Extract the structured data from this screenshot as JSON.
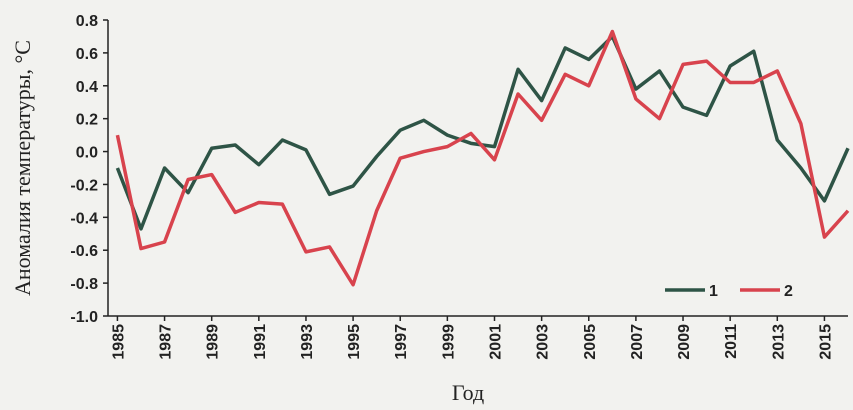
{
  "chart_data": {
    "type": "line",
    "x": [
      1985,
      1986,
      1987,
      1988,
      1989,
      1990,
      1991,
      1992,
      1993,
      1994,
      1995,
      1996,
      1997,
      1998,
      1999,
      2000,
      2001,
      2002,
      2003,
      2004,
      2005,
      2006,
      2007,
      2008,
      2009,
      2010,
      2011,
      2012,
      2013,
      2014,
      2015,
      2016
    ],
    "series": [
      {
        "name": "1",
        "color": "#2e5446",
        "values": [
          -0.1,
          -0.47,
          -0.1,
          -0.25,
          0.02,
          0.04,
          -0.08,
          0.07,
          0.01,
          -0.26,
          -0.21,
          -0.03,
          0.13,
          0.19,
          0.1,
          0.05,
          0.03,
          0.5,
          0.31,
          0.63,
          0.56,
          0.7,
          0.38,
          0.49,
          0.27,
          0.22,
          0.52,
          0.61,
          0.07,
          -0.1,
          -0.3,
          0.02
        ]
      },
      {
        "name": "2",
        "color": "#d8434d",
        "values": [
          0.1,
          -0.59,
          -0.55,
          -0.17,
          -0.14,
          -0.37,
          -0.31,
          -0.32,
          -0.61,
          -0.58,
          -0.81,
          -0.36,
          -0.04,
          0.0,
          0.03,
          0.11,
          -0.05,
          0.35,
          0.19,
          0.47,
          0.4,
          0.73,
          0.32,
          0.2,
          0.53,
          0.55,
          0.42,
          0.42,
          0.49,
          0.17,
          -0.52,
          -0.36
        ]
      }
    ],
    "xlim": [
      1984.6,
      2016
    ],
    "xticks": [
      1985,
      1987,
      1989,
      1991,
      1993,
      1995,
      1997,
      1999,
      2001,
      2003,
      2005,
      2007,
      2009,
      2011,
      2013,
      2015
    ],
    "ylim": [
      -1,
      0.8
    ],
    "yticks": [
      0.8,
      0.6,
      0.4,
      0.2,
      {
        "value": 0,
        "label": "0.0"
      },
      -0.2,
      -0.4,
      -0.6,
      -0.8,
      {
        "value": -1,
        "label": "-1.0"
      }
    ],
    "xlabel": "Год",
    "ylabel": "Аномалия температуры, °C",
    "legend": "lower right"
  }
}
